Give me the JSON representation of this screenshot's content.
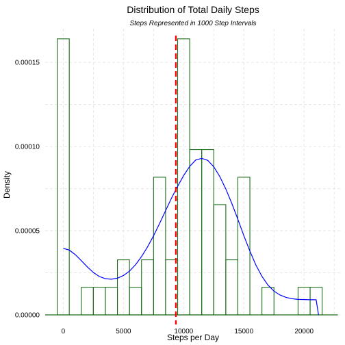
{
  "chart_data": {
    "type": "bar",
    "title": "Distribution of Total Daily Steps",
    "subtitle": "Steps Represented in 1000 Step Intervals",
    "xlabel": "Steps per Day",
    "ylabel": "Density",
    "bin_width": 1000,
    "xlim": [
      -1500,
      23000
    ],
    "ylim": [
      0,
      0.00017
    ],
    "x_ticks": [
      0,
      5000,
      10000,
      15000,
      20000
    ],
    "x_tick_labels": [
      "0",
      "5000",
      "10000",
      "15000",
      "20000"
    ],
    "y_ticks": [
      0,
      5e-05,
      0.0001,
      0.00015
    ],
    "y_tick_labels": [
      "0.00000",
      "0.00005",
      "0.00010",
      "0.00015"
    ],
    "bins": [
      {
        "x": 0,
        "density": 0.000164
      },
      {
        "x": 1000,
        "density": 0
      },
      {
        "x": 2000,
        "density": 1.64e-05
      },
      {
        "x": 3000,
        "density": 1.64e-05
      },
      {
        "x": 4000,
        "density": 1.64e-05
      },
      {
        "x": 5000,
        "density": 3.27e-05
      },
      {
        "x": 6000,
        "density": 1.64e-05
      },
      {
        "x": 7000,
        "density": 3.27e-05
      },
      {
        "x": 8000,
        "density": 8.18e-05
      },
      {
        "x": 9000,
        "density": 3.27e-05
      },
      {
        "x": 10000,
        "density": 0.000164
      },
      {
        "x": 11000,
        "density": 9.82e-05
      },
      {
        "x": 12000,
        "density": 9.82e-05
      },
      {
        "x": 13000,
        "density": 6.55e-05
      },
      {
        "x": 14000,
        "density": 3.27e-05
      },
      {
        "x": 15000,
        "density": 8.18e-05
      },
      {
        "x": 16000,
        "density": 0
      },
      {
        "x": 17000,
        "density": 1.64e-05
      },
      {
        "x": 18000,
        "density": 0
      },
      {
        "x": 19000,
        "density": 0
      },
      {
        "x": 20000,
        "density": 1.64e-05
      },
      {
        "x": 21000,
        "density": 1.64e-05
      }
    ],
    "density_curve": {
      "x": [
        0,
        500,
        1000,
        1500,
        2000,
        2500,
        3000,
        3500,
        4000,
        4500,
        5000,
        5500,
        6000,
        6500,
        7000,
        7500,
        8000,
        8500,
        9000,
        9500,
        10000,
        10500,
        11000,
        11500,
        12000,
        12500,
        13000,
        13500,
        14000,
        14500,
        15000,
        15500,
        16000,
        16500,
        17000,
        17500,
        18000,
        18500,
        19000,
        19500,
        20000,
        20500,
        21000,
        21200
      ],
      "y": [
        3.95e-05,
        3.85e-05,
        3.58e-05,
        3.22e-05,
        2.85e-05,
        2.52e-05,
        2.28e-05,
        2.15e-05,
        2.12e-05,
        2.18e-05,
        2.34e-05,
        2.6e-05,
        2.98e-05,
        3.46e-05,
        4.04e-05,
        4.7e-05,
        5.43e-05,
        6.19e-05,
        6.95e-05,
        7.64e-05,
        8.28e-05,
        8.82e-05,
        9.2e-05,
        9.3e-05,
        9.18e-05,
        8.8e-05,
        8.22e-05,
        7.48e-05,
        6.62e-05,
        5.68e-05,
        4.7e-05,
        3.79e-05,
        2.96e-05,
        2.29e-05,
        1.77e-05,
        1.41e-05,
        1.18e-05,
        1.04e-05,
        9.6e-06,
        9.2e-06,
        9.1e-06,
        9e-06,
        9e-06,
        0.0
      ]
    },
    "mean_line_x": 9354,
    "grid": true,
    "colors": {
      "bar_outline": "#1a6b1a",
      "density_curve": "#0000ff",
      "mean_line": "#ff0000",
      "grid": "#e6e6e6",
      "baseline": "#1a6b1a"
    }
  }
}
